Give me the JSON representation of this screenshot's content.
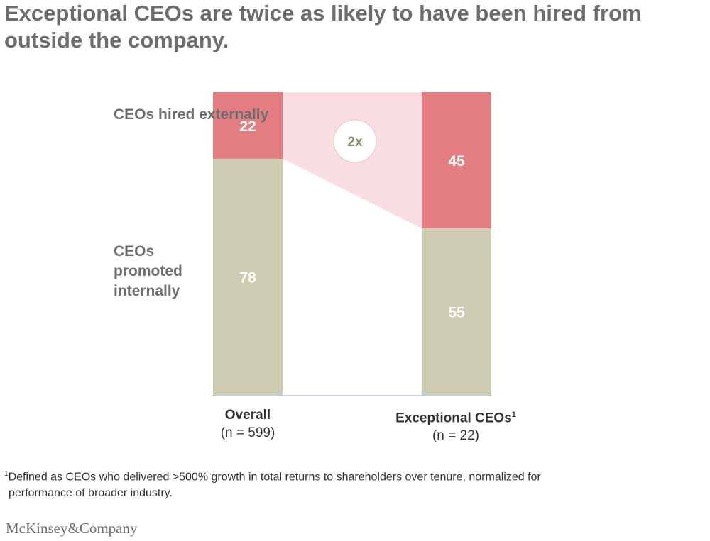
{
  "title": "Exceptional CEOs are twice as likely to have been hired from outside the company.",
  "row_labels": {
    "external": "CEOs hired externally",
    "internal": "CEOs promoted internally"
  },
  "categories": [
    {
      "name": "Overall",
      "superscript": "",
      "subtitle": "(n = 599)"
    },
    {
      "name": "Exceptional CEOs",
      "superscript": "1",
      "subtitle": "(n = 22)"
    }
  ],
  "multiplier_label": "2x",
  "footnote": {
    "marker": "1",
    "line1": "Defined as CEOs who delivered >500% growth in total returns to shareholders over tenure, normalized for",
    "line2": "performance of broader industry."
  },
  "brand": "McKinsey&Company",
  "colors": {
    "external": "#e37d82",
    "internal": "#cdccb2",
    "connector": "#f8dee0",
    "title": "#6d6d6d",
    "multiplier_text": "#8a8a6a"
  },
  "chart_data": {
    "type": "bar",
    "stacked": true,
    "percent_stacked": true,
    "categories": [
      "Overall",
      "Exceptional CEOs"
    ],
    "series": [
      {
        "name": "CEOs promoted internally",
        "values": [
          78,
          55
        ]
      },
      {
        "name": "CEOs hired externally",
        "values": [
          22,
          45
        ]
      }
    ],
    "ylim": [
      0,
      100
    ],
    "annotation": "2x"
  }
}
